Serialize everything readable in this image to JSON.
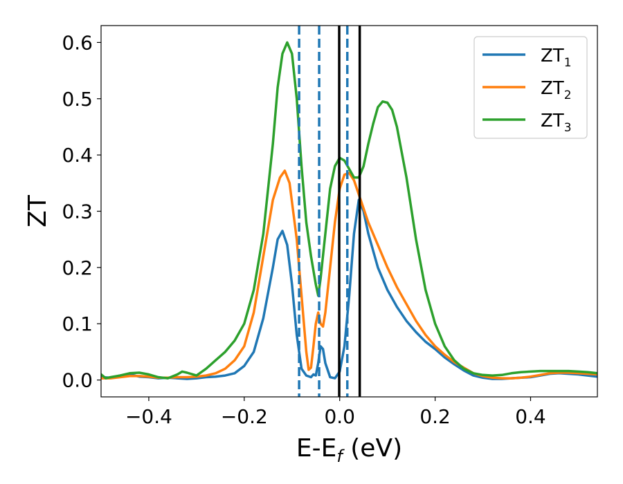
{
  "chart_data": {
    "type": "line",
    "xlabel": {
      "main": "E-E",
      "sub": "f",
      "suffix": " (eV)"
    },
    "ylabel": "ZT",
    "xlim": [
      -0.5,
      0.54
    ],
    "ylim": [
      -0.03,
      0.63
    ],
    "xticks": [
      -0.4,
      -0.2,
      0.0,
      0.2,
      0.4
    ],
    "xtick_labels": [
      "−0.4",
      "−0.2",
      "0.0",
      "0.2",
      "0.4"
    ],
    "yticks": [
      0.0,
      0.1,
      0.2,
      0.3,
      0.4,
      0.5,
      0.6
    ],
    "ytick_labels": [
      "0.0",
      "0.1",
      "0.2",
      "0.3",
      "0.4",
      "0.5",
      "0.6"
    ],
    "grid": false,
    "legend": {
      "placement": "top-right"
    },
    "series": [
      {
        "name": "ZT",
        "sub": "1",
        "color": "#1f77b4",
        "points": [
          [
            -0.5,
            0.005
          ],
          [
            -0.48,
            0.004
          ],
          [
            -0.46,
            0.008
          ],
          [
            -0.44,
            0.01
          ],
          [
            -0.42,
            0.006
          ],
          [
            -0.4,
            0.005
          ],
          [
            -0.38,
            0.003
          ],
          [
            -0.36,
            0.004
          ],
          [
            -0.34,
            0.003
          ],
          [
            -0.32,
            0.002
          ],
          [
            -0.3,
            0.003
          ],
          [
            -0.28,
            0.005
          ],
          [
            -0.26,
            0.006
          ],
          [
            -0.24,
            0.008
          ],
          [
            -0.22,
            0.012
          ],
          [
            -0.2,
            0.025
          ],
          [
            -0.18,
            0.05
          ],
          [
            -0.16,
            0.11
          ],
          [
            -0.14,
            0.2
          ],
          [
            -0.13,
            0.25
          ],
          [
            -0.12,
            0.265
          ],
          [
            -0.11,
            0.24
          ],
          [
            -0.1,
            0.17
          ],
          [
            -0.09,
            0.08
          ],
          [
            -0.08,
            0.02
          ],
          [
            -0.07,
            0.008
          ],
          [
            -0.06,
            0.005
          ],
          [
            -0.055,
            0.01
          ],
          [
            -0.05,
            0.008
          ],
          [
            -0.045,
            0.03
          ],
          [
            -0.04,
            0.06
          ],
          [
            -0.035,
            0.055
          ],
          [
            -0.03,
            0.03
          ],
          [
            -0.02,
            0.005
          ],
          [
            -0.01,
            0.003
          ],
          [
            0.0,
            0.015
          ],
          [
            0.01,
            0.06
          ],
          [
            0.02,
            0.15
          ],
          [
            0.03,
            0.26
          ],
          [
            0.04,
            0.32
          ],
          [
            0.05,
            0.3
          ],
          [
            0.06,
            0.26
          ],
          [
            0.08,
            0.2
          ],
          [
            0.1,
            0.16
          ],
          [
            0.12,
            0.13
          ],
          [
            0.14,
            0.105
          ],
          [
            0.16,
            0.085
          ],
          [
            0.18,
            0.068
          ],
          [
            0.2,
            0.055
          ],
          [
            0.22,
            0.04
          ],
          [
            0.24,
            0.028
          ],
          [
            0.26,
            0.017
          ],
          [
            0.28,
            0.008
          ],
          [
            0.3,
            0.004
          ],
          [
            0.32,
            0.002
          ],
          [
            0.34,
            0.002
          ],
          [
            0.36,
            0.003
          ],
          [
            0.38,
            0.004
          ],
          [
            0.4,
            0.005
          ],
          [
            0.42,
            0.008
          ],
          [
            0.44,
            0.011
          ],
          [
            0.46,
            0.012
          ],
          [
            0.48,
            0.011
          ],
          [
            0.5,
            0.01
          ],
          [
            0.52,
            0.008
          ],
          [
            0.54,
            0.006
          ]
        ]
      },
      {
        "name": "ZT",
        "sub": "2",
        "color": "#ff7f0e",
        "points": [
          [
            -0.5,
            0.003
          ],
          [
            -0.48,
            0.003
          ],
          [
            -0.46,
            0.005
          ],
          [
            -0.44,
            0.007
          ],
          [
            -0.42,
            0.007
          ],
          [
            -0.4,
            0.006
          ],
          [
            -0.38,
            0.004
          ],
          [
            -0.36,
            0.004
          ],
          [
            -0.34,
            0.005
          ],
          [
            -0.32,
            0.005
          ],
          [
            -0.3,
            0.006
          ],
          [
            -0.28,
            0.008
          ],
          [
            -0.26,
            0.012
          ],
          [
            -0.24,
            0.02
          ],
          [
            -0.22,
            0.035
          ],
          [
            -0.2,
            0.06
          ],
          [
            -0.18,
            0.12
          ],
          [
            -0.16,
            0.22
          ],
          [
            -0.14,
            0.32
          ],
          [
            -0.125,
            0.36
          ],
          [
            -0.115,
            0.372
          ],
          [
            -0.105,
            0.35
          ],
          [
            -0.09,
            0.25
          ],
          [
            -0.08,
            0.15
          ],
          [
            -0.07,
            0.05
          ],
          [
            -0.065,
            0.018
          ],
          [
            -0.06,
            0.022
          ],
          [
            -0.055,
            0.06
          ],
          [
            -0.05,
            0.1
          ],
          [
            -0.045,
            0.12
          ],
          [
            -0.04,
            0.1
          ],
          [
            -0.035,
            0.095
          ],
          [
            -0.03,
            0.12
          ],
          [
            -0.02,
            0.2
          ],
          [
            -0.01,
            0.28
          ],
          [
            0.0,
            0.34
          ],
          [
            0.01,
            0.365
          ],
          [
            0.02,
            0.368
          ],
          [
            0.03,
            0.355
          ],
          [
            0.04,
            0.33
          ],
          [
            0.06,
            0.28
          ],
          [
            0.08,
            0.24
          ],
          [
            0.1,
            0.2
          ],
          [
            0.12,
            0.165
          ],
          [
            0.14,
            0.135
          ],
          [
            0.16,
            0.105
          ],
          [
            0.18,
            0.08
          ],
          [
            0.2,
            0.06
          ],
          [
            0.22,
            0.045
          ],
          [
            0.24,
            0.032
          ],
          [
            0.26,
            0.022
          ],
          [
            0.28,
            0.012
          ],
          [
            0.3,
            0.007
          ],
          [
            0.32,
            0.004
          ],
          [
            0.34,
            0.003
          ],
          [
            0.36,
            0.003
          ],
          [
            0.38,
            0.004
          ],
          [
            0.4,
            0.006
          ],
          [
            0.42,
            0.009
          ],
          [
            0.44,
            0.012
          ],
          [
            0.46,
            0.013
          ],
          [
            0.48,
            0.013
          ],
          [
            0.5,
            0.012
          ],
          [
            0.52,
            0.011
          ],
          [
            0.54,
            0.01
          ]
        ]
      },
      {
        "name": "ZT",
        "sub": "3",
        "color": "#2ca02c",
        "points": [
          [
            -0.5,
            0.01
          ],
          [
            -0.49,
            0.003
          ],
          [
            -0.48,
            0.005
          ],
          [
            -0.46,
            0.008
          ],
          [
            -0.44,
            0.012
          ],
          [
            -0.42,
            0.013
          ],
          [
            -0.4,
            0.01
          ],
          [
            -0.38,
            0.005
          ],
          [
            -0.36,
            0.003
          ],
          [
            -0.34,
            0.01
          ],
          [
            -0.33,
            0.015
          ],
          [
            -0.32,
            0.013
          ],
          [
            -0.3,
            0.008
          ],
          [
            -0.28,
            0.02
          ],
          [
            -0.26,
            0.035
          ],
          [
            -0.24,
            0.05
          ],
          [
            -0.22,
            0.07
          ],
          [
            -0.2,
            0.1
          ],
          [
            -0.18,
            0.16
          ],
          [
            -0.16,
            0.26
          ],
          [
            -0.14,
            0.42
          ],
          [
            -0.13,
            0.52
          ],
          [
            -0.12,
            0.58
          ],
          [
            -0.11,
            0.6
          ],
          [
            -0.1,
            0.58
          ],
          [
            -0.09,
            0.5
          ],
          [
            -0.08,
            0.38
          ],
          [
            -0.07,
            0.28
          ],
          [
            -0.06,
            0.22
          ],
          [
            -0.05,
            0.17
          ],
          [
            -0.045,
            0.15
          ],
          [
            -0.04,
            0.18
          ],
          [
            -0.03,
            0.26
          ],
          [
            -0.02,
            0.34
          ],
          [
            -0.01,
            0.38
          ],
          [
            0.0,
            0.395
          ],
          [
            0.01,
            0.39
          ],
          [
            0.02,
            0.375
          ],
          [
            0.03,
            0.36
          ],
          [
            0.04,
            0.36
          ],
          [
            0.05,
            0.38
          ],
          [
            0.06,
            0.42
          ],
          [
            0.07,
            0.455
          ],
          [
            0.08,
            0.485
          ],
          [
            0.09,
            0.495
          ],
          [
            0.1,
            0.493
          ],
          [
            0.11,
            0.48
          ],
          [
            0.12,
            0.45
          ],
          [
            0.14,
            0.36
          ],
          [
            0.16,
            0.25
          ],
          [
            0.18,
            0.16
          ],
          [
            0.2,
            0.1
          ],
          [
            0.22,
            0.06
          ],
          [
            0.24,
            0.035
          ],
          [
            0.26,
            0.02
          ],
          [
            0.28,
            0.012
          ],
          [
            0.3,
            0.009
          ],
          [
            0.32,
            0.008
          ],
          [
            0.34,
            0.009
          ],
          [
            0.36,
            0.012
          ],
          [
            0.38,
            0.014
          ],
          [
            0.4,
            0.015
          ],
          [
            0.42,
            0.016
          ],
          [
            0.44,
            0.016
          ],
          [
            0.46,
            0.016
          ],
          [
            0.48,
            0.016
          ],
          [
            0.5,
            0.015
          ],
          [
            0.52,
            0.014
          ],
          [
            0.54,
            0.012
          ]
        ]
      }
    ],
    "vlines": [
      {
        "x": -0.085,
        "style": "dashed",
        "color": "#1f77b4"
      },
      {
        "x": -0.043,
        "style": "dashed",
        "color": "#1f77b4"
      },
      {
        "x": 0.016,
        "style": "dashed",
        "color": "#1f77b4"
      },
      {
        "x": -0.001,
        "style": "solid",
        "color": "#000000"
      },
      {
        "x": 0.042,
        "style": "solid",
        "color": "#000000"
      }
    ]
  }
}
